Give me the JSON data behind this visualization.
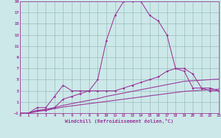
{
  "xlabel": "Windchill (Refroidissement éolien,°C)",
  "xlim": [
    0,
    23
  ],
  "ylim": [
    -1,
    19
  ],
  "xticks": [
    0,
    1,
    2,
    3,
    4,
    5,
    6,
    7,
    8,
    9,
    10,
    11,
    12,
    13,
    14,
    15,
    16,
    17,
    18,
    19,
    20,
    21,
    22,
    23
  ],
  "yticks": [
    -1,
    1,
    3,
    5,
    7,
    9,
    11,
    13,
    15,
    17,
    19
  ],
  "background_color": "#cce8e8",
  "grid_color": "#99bbbb",
  "line_color": "#993399",
  "line1_x": [
    0,
    1,
    2,
    3,
    4,
    5,
    6,
    7,
    8,
    9,
    10,
    11,
    12,
    13,
    14,
    15,
    16,
    17,
    18,
    19,
    20,
    21,
    22,
    23
  ],
  "line1_y": [
    -1,
    -1,
    0,
    0,
    2,
    4,
    3,
    3,
    3,
    5,
    12,
    16.5,
    19,
    19,
    19,
    16.5,
    15.5,
    13,
    7,
    6.5,
    3.5,
    3.5,
    3,
    3
  ],
  "line2_x": [
    0,
    1,
    2,
    3,
    4,
    5,
    6,
    7,
    8,
    9,
    10,
    11,
    12,
    13,
    14,
    15,
    16,
    17,
    18,
    19,
    20,
    21,
    22,
    23
  ],
  "line2_y": [
    -1,
    -1,
    -0.5,
    -0.5,
    0,
    1.5,
    2,
    2.5,
    3,
    3,
    3,
    3,
    3.5,
    4,
    4.5,
    5,
    5.5,
    6.5,
    7,
    7,
    6,
    3.5,
    3.5,
    3
  ],
  "line3_x": [
    0,
    1,
    2,
    3,
    4,
    5,
    6,
    7,
    8,
    9,
    10,
    11,
    12,
    13,
    14,
    15,
    16,
    17,
    18,
    19,
    20,
    21,
    22,
    23
  ],
  "line3_y": [
    -1,
    -1,
    -0.5,
    -0.3,
    0,
    0.4,
    0.7,
    1.0,
    1.3,
    1.6,
    2.0,
    2.3,
    2.6,
    2.9,
    3.2,
    3.5,
    3.8,
    4.1,
    4.4,
    4.7,
    4.8,
    4.9,
    5.0,
    5.1
  ],
  "line4_x": [
    0,
    1,
    2,
    3,
    4,
    5,
    6,
    7,
    8,
    9,
    10,
    11,
    12,
    13,
    14,
    15,
    16,
    17,
    18,
    19,
    20,
    21,
    22,
    23
  ],
  "line4_y": [
    -1,
    -1,
    -0.7,
    -0.5,
    -0.2,
    0.1,
    0.3,
    0.5,
    0.7,
    0.9,
    1.1,
    1.3,
    1.5,
    1.7,
    1.9,
    2.1,
    2.3,
    2.5,
    2.7,
    2.9,
    3.0,
    3.1,
    3.2,
    3.3
  ]
}
